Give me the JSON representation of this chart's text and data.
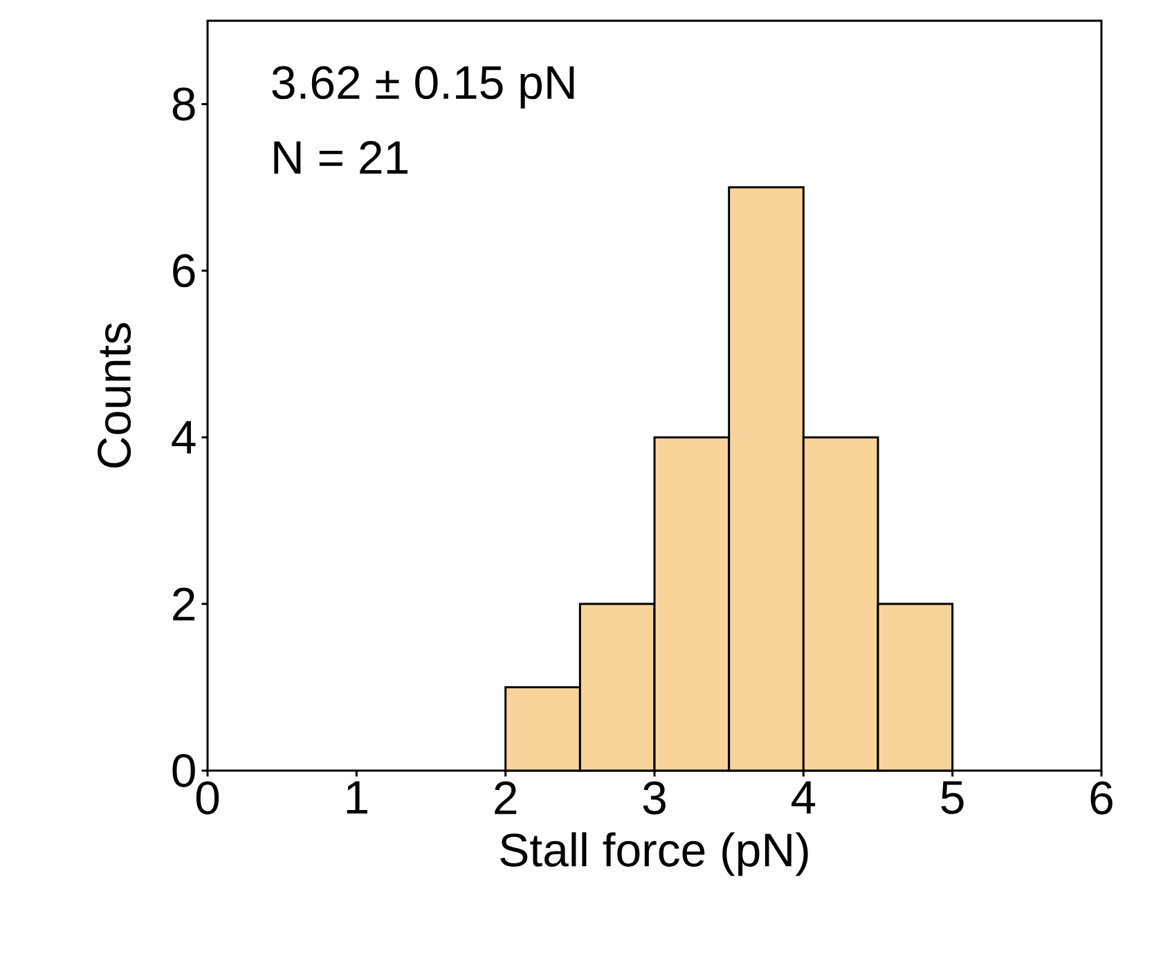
{
  "chart_data": {
    "type": "histogram",
    "xlabel": "Stall force (pN)",
    "ylabel": "Counts",
    "bins": [
      2,
      2.5,
      3,
      3.5,
      4,
      4.5,
      5
    ],
    "values": [
      1,
      2,
      4,
      7,
      4,
      2
    ],
    "color": "#f9d49a",
    "xlim": [
      0,
      6
    ],
    "ylim": [
      0,
      9
    ],
    "xticks": [
      0,
      1,
      2,
      3,
      4,
      5,
      6
    ],
    "yticks": [
      0,
      2,
      4,
      6,
      8
    ],
    "annotations": [
      "3.62 ± 0.15 pN",
      "N = 21"
    ],
    "grid": false
  }
}
